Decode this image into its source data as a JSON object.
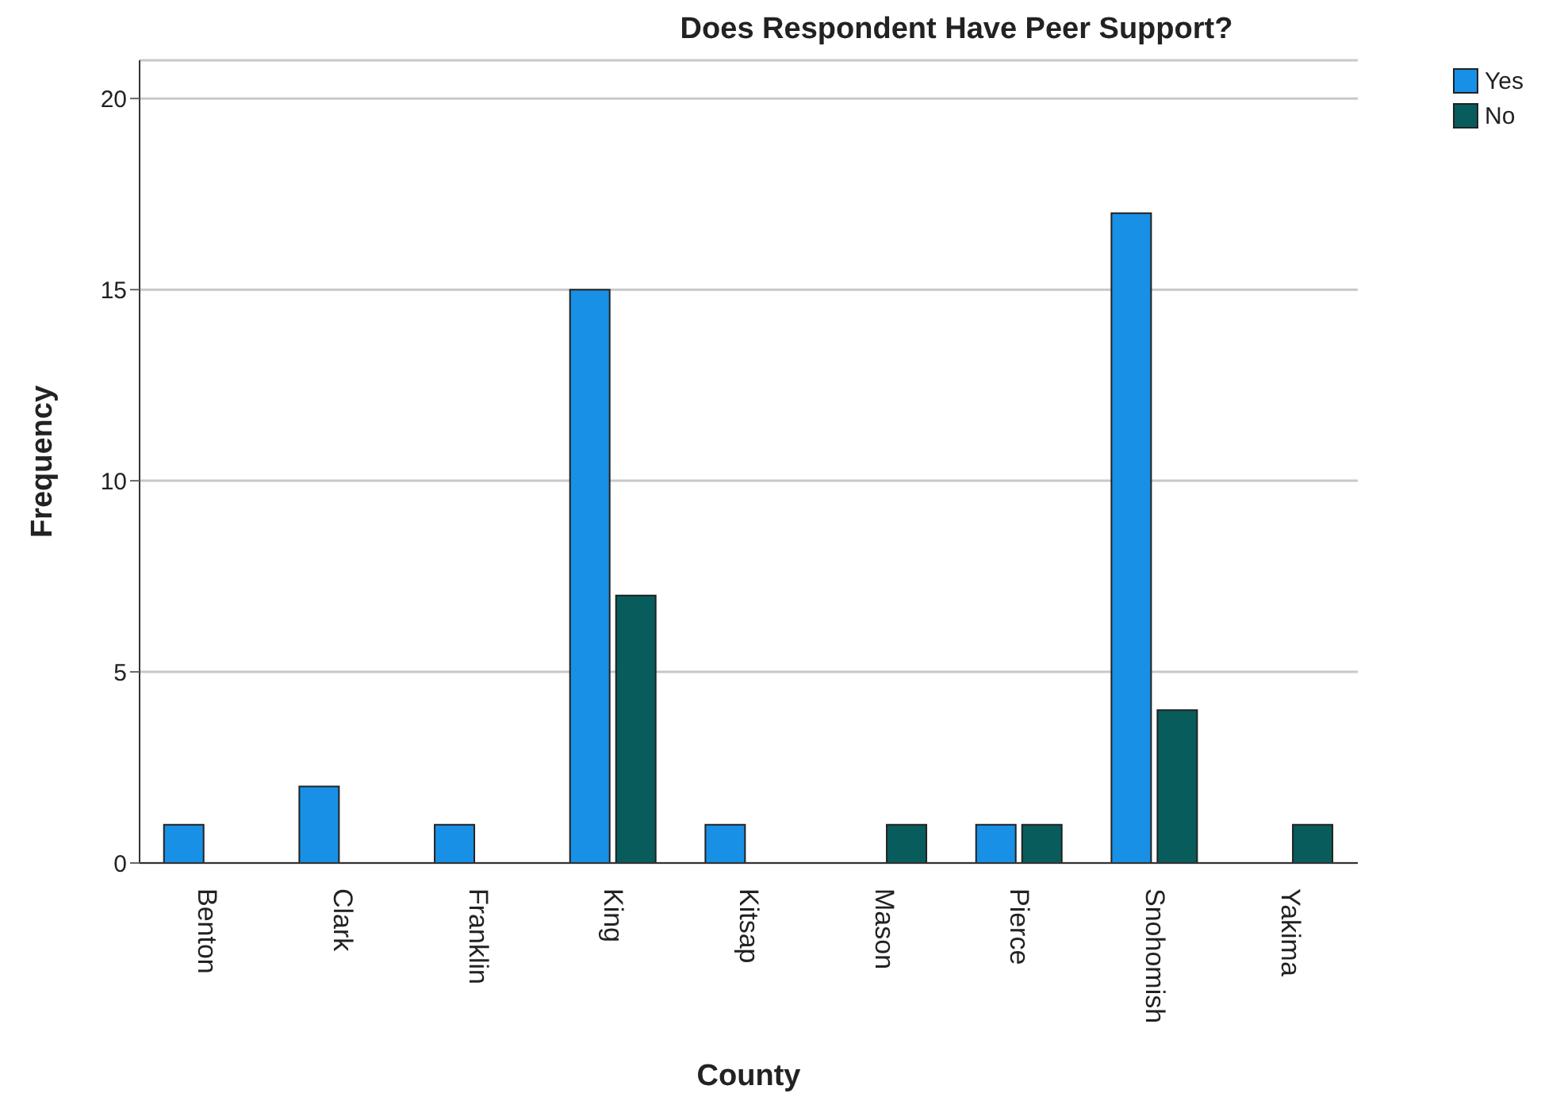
{
  "chart_data": {
    "type": "bar",
    "title": "Does Respondent Have Peer Support?",
    "xlabel": "County",
    "ylabel": "Frequency",
    "categories": [
      "Benton",
      "Clark",
      "Franklin",
      "King",
      "Kitsap",
      "Mason",
      "Pierce",
      "Snohomish",
      "Yakima"
    ],
    "series": [
      {
        "name": "Yes",
        "color": "#1890e6",
        "values": [
          1,
          2,
          1,
          15,
          1,
          0,
          1,
          17,
          0
        ]
      },
      {
        "name": "No",
        "color": "#085c5c",
        "values": [
          0,
          0,
          0,
          7,
          0,
          1,
          1,
          4,
          1
        ]
      }
    ],
    "ylim": [
      0,
      21
    ],
    "yticks": [
      0,
      5,
      10,
      15,
      20
    ],
    "grid": "y",
    "legend": "top right"
  }
}
